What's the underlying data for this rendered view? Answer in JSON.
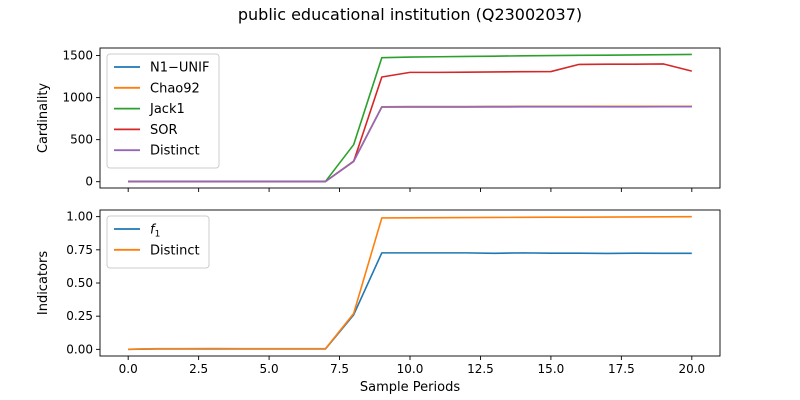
{
  "figure": {
    "title": "public educational institution (Q23002037)"
  },
  "chart_data": [
    {
      "type": "line",
      "ylabel": "Cardinality",
      "xlabel": "",
      "xlim": [
        -1,
        21
      ],
      "ylim": [
        -75,
        1590
      ],
      "xticks": [
        0,
        2.5,
        5,
        7.5,
        10,
        12.5,
        15,
        17.5,
        20
      ],
      "xtick_labels": [],
      "yticks": [
        0,
        500,
        1000,
        1500
      ],
      "ytick_labels": [
        "0",
        "500",
        "1000",
        "1500"
      ],
      "legend": "upper-left",
      "grid": false,
      "x": [
        0,
        1,
        2,
        3,
        4,
        5,
        6,
        7,
        8,
        9,
        10,
        11,
        12,
        13,
        14,
        15,
        16,
        17,
        18,
        19,
        20
      ],
      "series": [
        {
          "name": "N1−UNIF",
          "color": "#1f77b4",
          "values": [
            2,
            2,
            2,
            2,
            2,
            2,
            2,
            2,
            245,
            890,
            892,
            892,
            892,
            893,
            895,
            895,
            895,
            896,
            896,
            897,
            897
          ]
        },
        {
          "name": "Chao92",
          "color": "#ff7f0e",
          "values": [
            2,
            2,
            2,
            2,
            2,
            2,
            2,
            2,
            245,
            890,
            892,
            892,
            892,
            893,
            895,
            895,
            895,
            896,
            896,
            897,
            897
          ]
        },
        {
          "name": "Jack1",
          "color": "#2ca02c",
          "values": [
            3,
            3,
            3,
            3,
            3,
            3,
            3,
            3,
            440,
            1475,
            1482,
            1486,
            1490,
            1493,
            1497,
            1500,
            1503,
            1505,
            1508,
            1511,
            1514
          ]
        },
        {
          "name": "SOR",
          "color": "#d62728",
          "values": [
            2,
            2,
            2,
            2,
            2,
            2,
            2,
            2,
            240,
            1245,
            1300,
            1300,
            1302,
            1305,
            1308,
            1310,
            1395,
            1397,
            1398,
            1400,
            1315
          ]
        },
        {
          "name": "Distinct",
          "color": "#9467bd",
          "values": [
            2,
            2,
            2,
            2,
            2,
            2,
            2,
            2,
            240,
            888,
            888,
            888,
            888,
            889,
            890,
            890,
            890,
            891,
            891,
            892,
            892
          ]
        }
      ]
    },
    {
      "type": "line",
      "ylabel": "Indicators",
      "xlabel": "Sample Periods",
      "xlim": [
        -1,
        21
      ],
      "ylim": [
        -0.05,
        1.05
      ],
      "xticks": [
        0,
        2.5,
        5,
        7.5,
        10,
        12.5,
        15,
        17.5,
        20
      ],
      "xtick_labels": [
        "0.0",
        "2.5",
        "5.0",
        "7.5",
        "10.0",
        "12.5",
        "15.0",
        "17.5",
        "20.0"
      ],
      "yticks": [
        0,
        0.25,
        0.5,
        0.75,
        1.0
      ],
      "ytick_labels": [
        "0.00",
        "0.25",
        "0.50",
        "0.75",
        "1.00"
      ],
      "legend": "upper-left",
      "grid": false,
      "x": [
        0,
        1,
        2,
        3,
        4,
        5,
        6,
        7,
        8,
        9,
        10,
        11,
        12,
        13,
        14,
        15,
        16,
        17,
        18,
        19,
        20
      ],
      "series": [
        {
          "name": "f",
          "name_subscript": "1",
          "color": "#1f77b4",
          "values": [
            0.0,
            0.003,
            0.003,
            0.003,
            0.003,
            0.003,
            0.003,
            0.003,
            0.26,
            0.727,
            0.727,
            0.727,
            0.727,
            0.724,
            0.727,
            0.725,
            0.725,
            0.723,
            0.725,
            0.724,
            0.724
          ]
        },
        {
          "name": "Distinct",
          "color": "#ff7f0e",
          "values": [
            0.0,
            0.005,
            0.005,
            0.006,
            0.005,
            0.005,
            0.005,
            0.005,
            0.27,
            0.99,
            0.991,
            0.992,
            0.993,
            0.994,
            0.995,
            0.996,
            0.996,
            0.997,
            0.998,
            0.999,
            1.0
          ]
        }
      ]
    }
  ]
}
